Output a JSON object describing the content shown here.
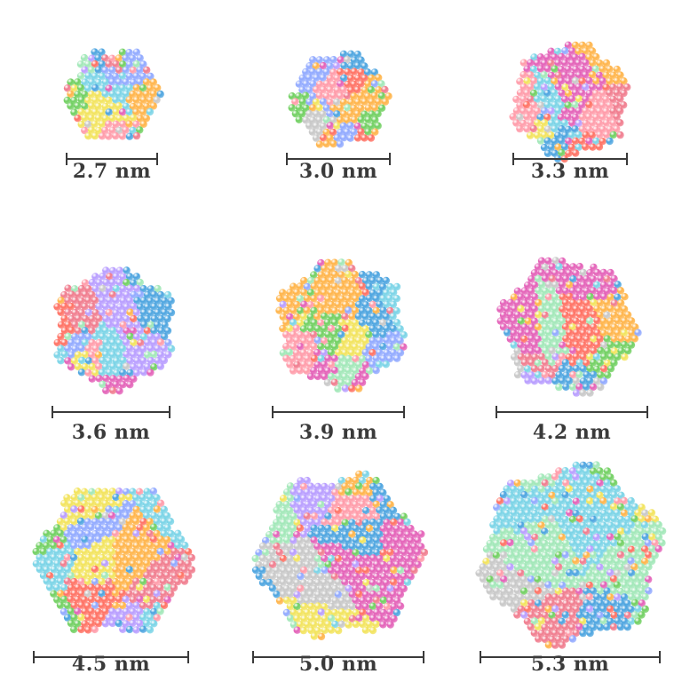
{
  "particles": [
    {
      "label": "2.7 nm"
    },
    {
      "label": "3.0 nm"
    },
    {
      "label": "3.3 nm"
    },
    {
      "label": "3.6 nm"
    },
    {
      "label": "3.9 nm"
    },
    {
      "label": "4.2 nm"
    },
    {
      "label": "4.5 nm"
    },
    {
      "label": "5.0 nm"
    },
    {
      "label": "5.3 nm"
    }
  ],
  "palette": [
    "#f07a8c",
    "#78d3e6",
    "#ff9aa8",
    "#6fcf5f",
    "#e35fb7",
    "#ffb347",
    "#b79cff",
    "#8fa8ff",
    "#f2e35a",
    "#c7c7c7",
    "#4aa3df",
    "#ff6f61",
    "#a0e7b7"
  ]
}
